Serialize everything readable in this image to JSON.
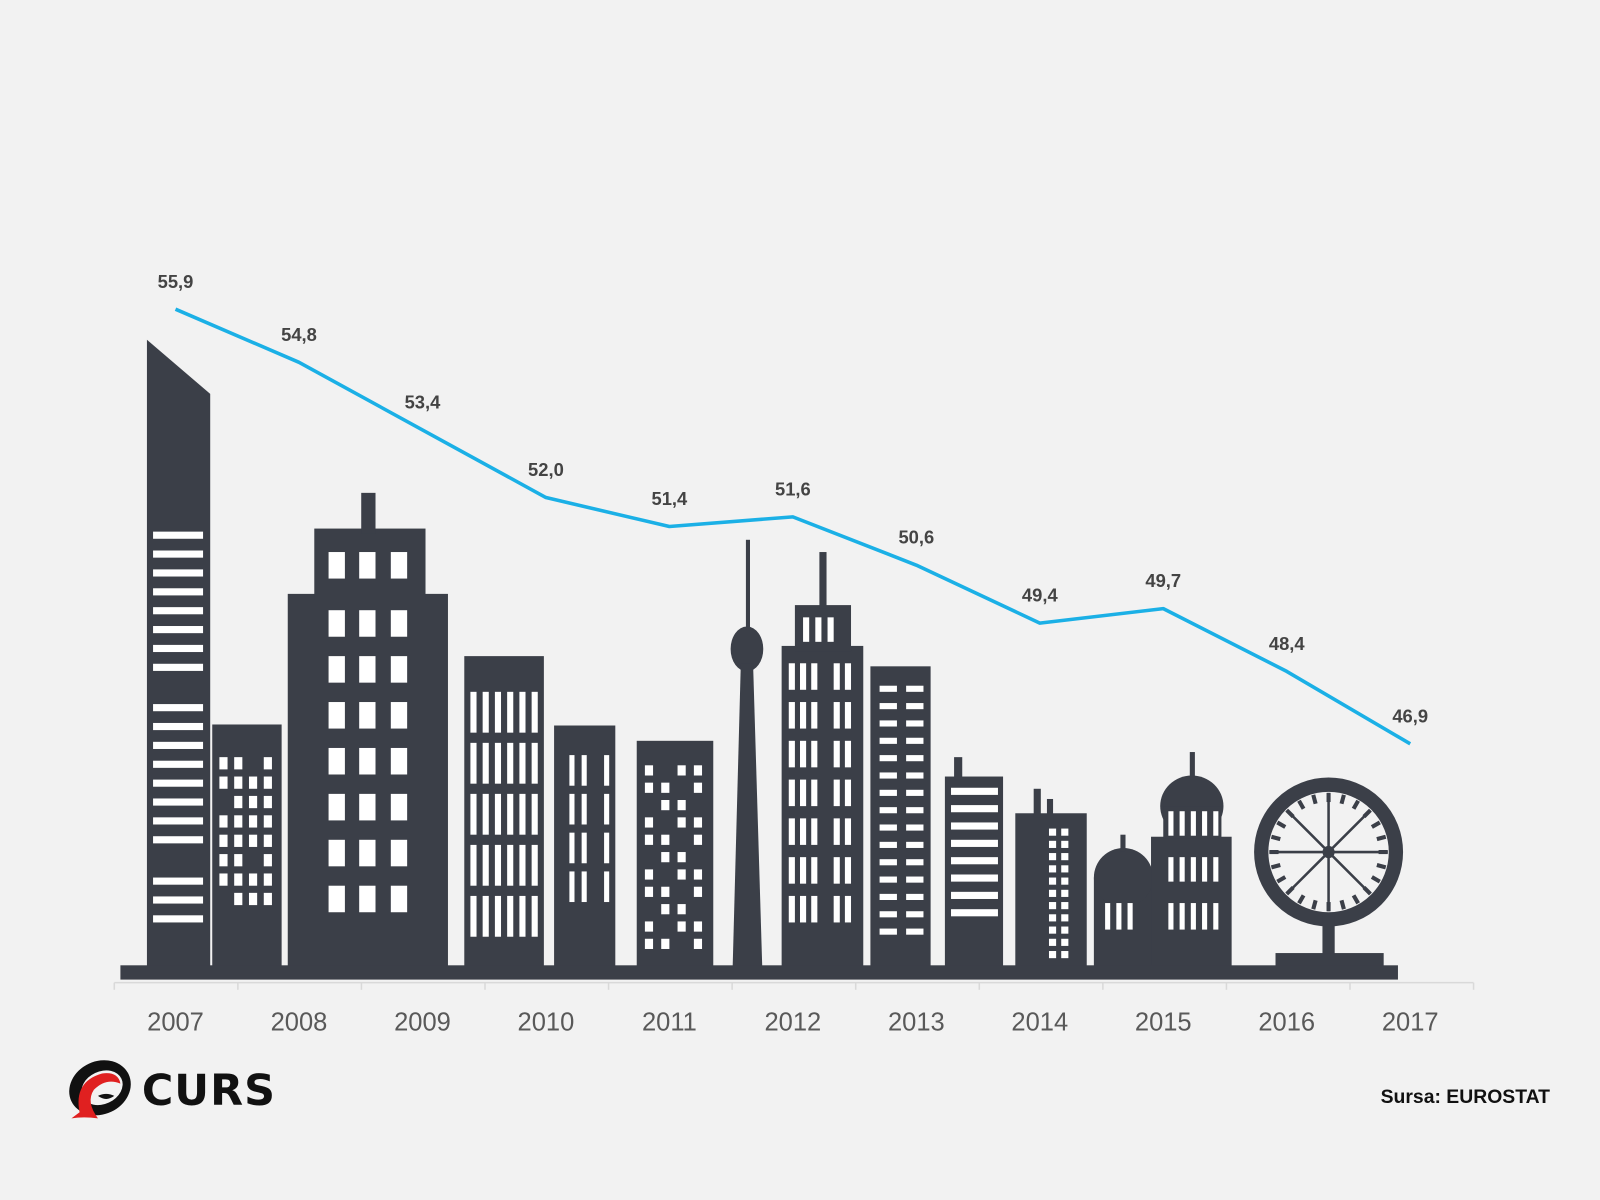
{
  "chart_data": {
    "type": "line",
    "title": "",
    "xlabel": "",
    "ylabel": "",
    "categories": [
      "2007",
      "2008",
      "2009",
      "2010",
      "2011",
      "2012",
      "2013",
      "2014",
      "2015",
      "2016",
      "2017"
    ],
    "series": [
      {
        "name": "EUROSTAT",
        "color": "#1bb0e6",
        "values": [
          55.9,
          54.8,
          53.4,
          52.0,
          51.4,
          51.6,
          50.6,
          49.4,
          49.7,
          48.4,
          46.9
        ],
        "labels": [
          "55,9",
          "54,8",
          "53,4",
          "52,0",
          "51,4",
          "51,6",
          "50,6",
          "49,4",
          "49,7",
          "48,4",
          "46,9"
        ]
      }
    ],
    "grid": false,
    "legend": "none"
  },
  "source": "Sursa: EUROSTAT",
  "logo": {
    "text": "CURS"
  },
  "colors": {
    "buildings": "#3b3f48",
    "line": "#1bb0e6",
    "background": "#f2f2f2",
    "logo_red": "#e02020"
  }
}
